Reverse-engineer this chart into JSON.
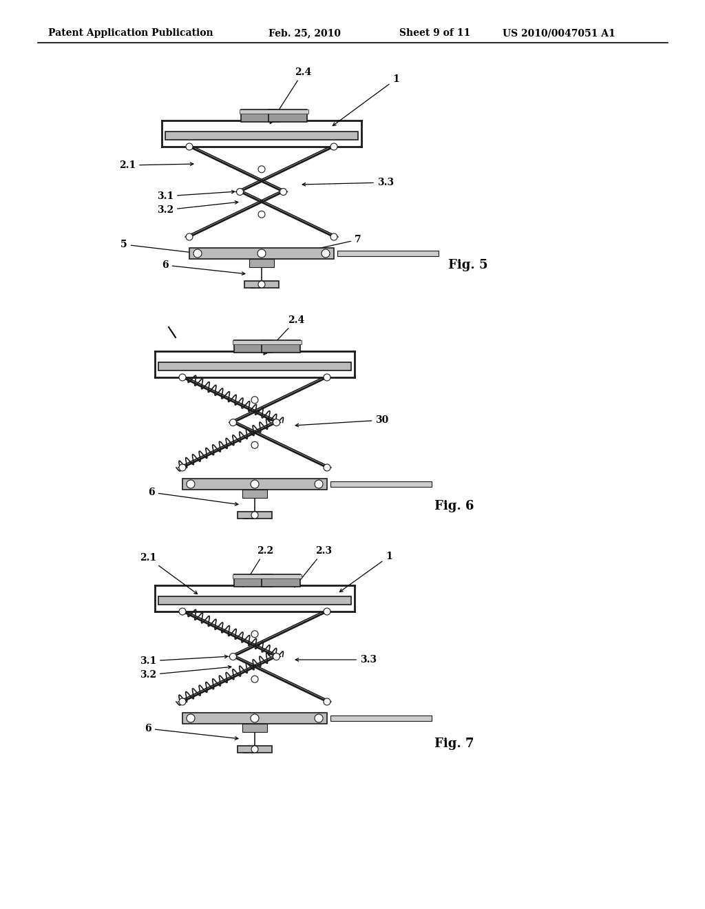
{
  "bg_color": "#ffffff",
  "header_text": "Patent Application Publication",
  "header_date": "Feb. 25, 2010",
  "header_sheet": "Sheet 9 of 11",
  "header_patent": "US 2010/0047051 A1",
  "line_color": "#111111",
  "fig5_label": "Fig. 5",
  "fig6_label": "Fig. 6",
  "fig7_label": "Fig. 7"
}
